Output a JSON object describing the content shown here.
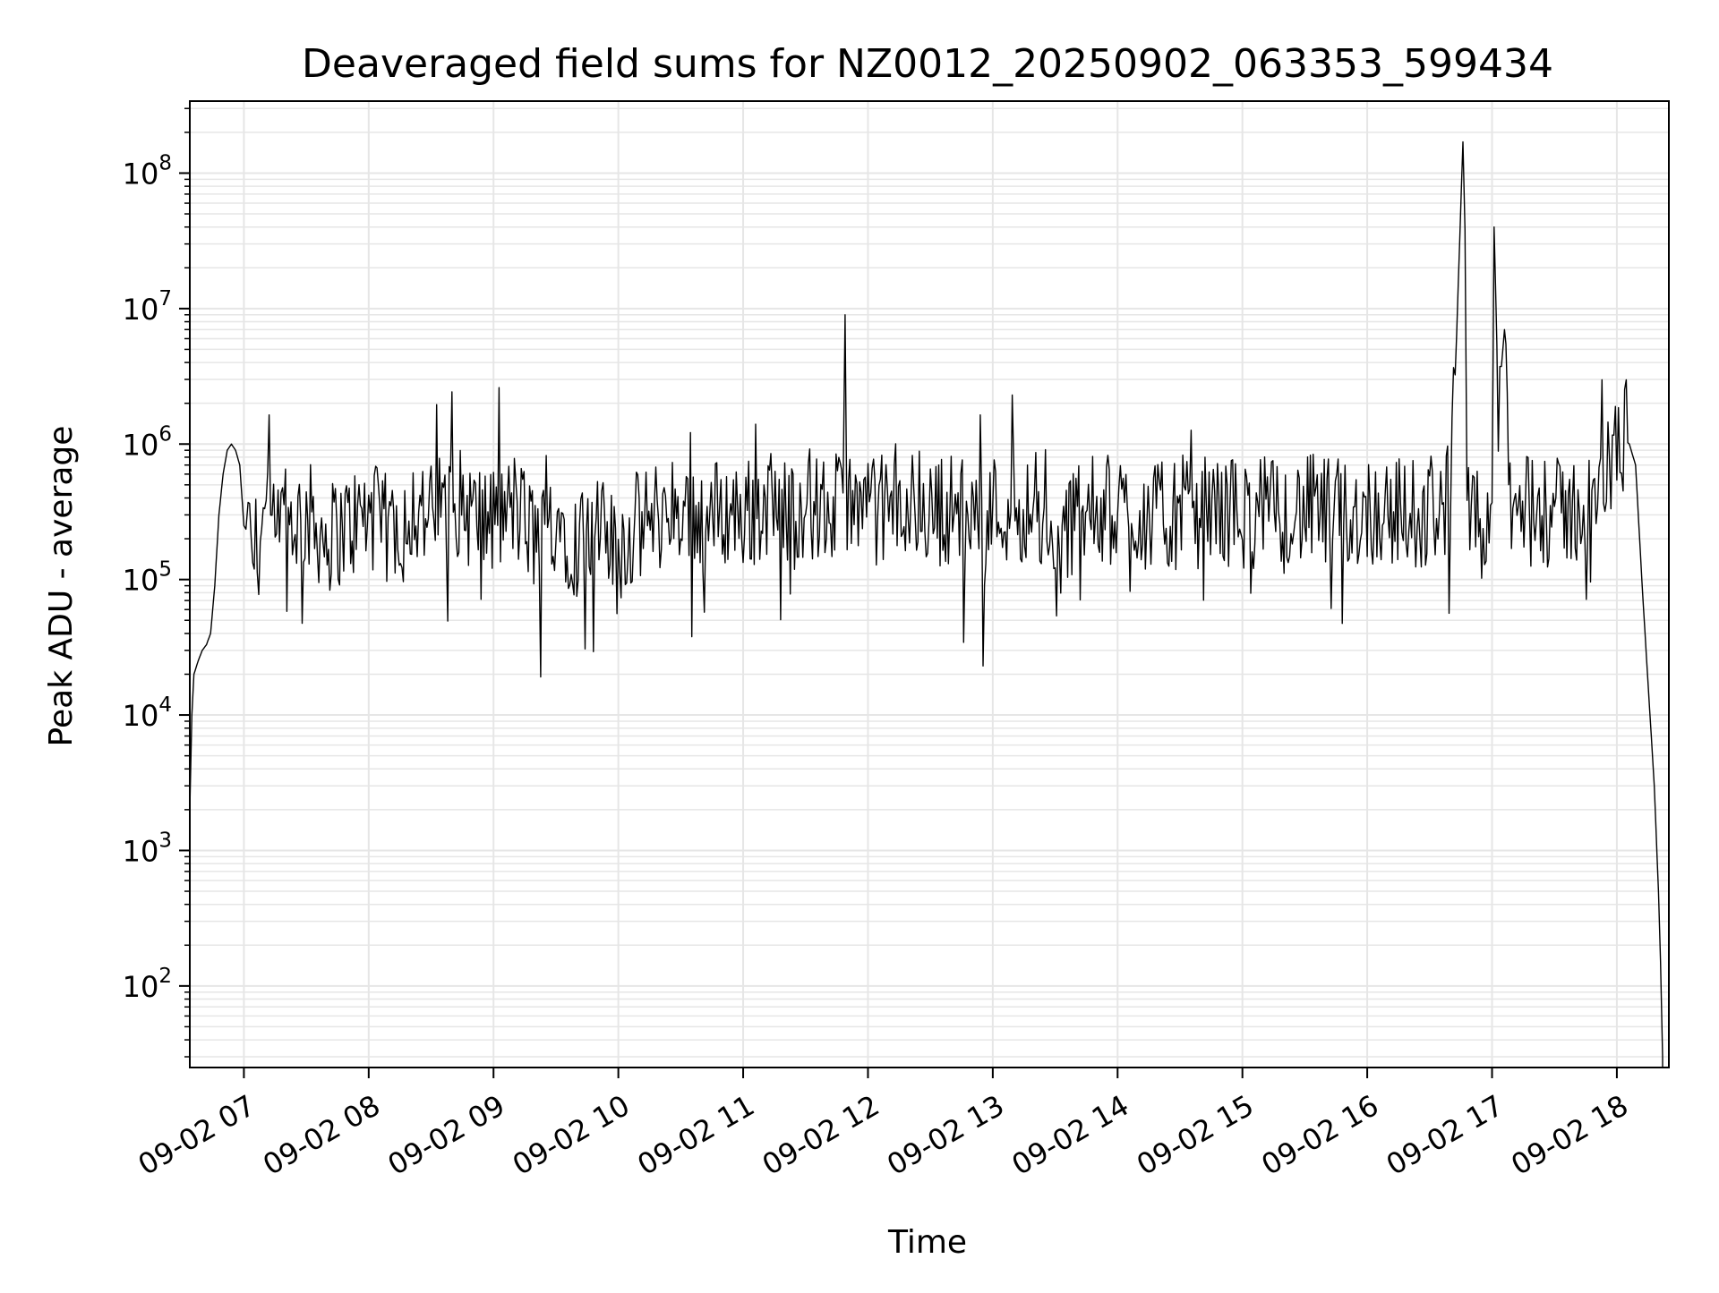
{
  "chart_data": {
    "type": "line",
    "title": "Deaveraged field sums for NZ0012_20250902_063353_599434",
    "xlabel": "Time",
    "ylabel": "Peak ADU - average",
    "yscale": "log",
    "xlim": [
      "2025-09-02 06:34",
      "2025-09-02 18:25"
    ],
    "ylim": [
      25,
      340000000
    ],
    "grid": true,
    "legend": "none",
    "x_ticks": [
      {
        "value": "2025-09-02 07:00",
        "label": "09-02 07"
      },
      {
        "value": "2025-09-02 08:00",
        "label": "09-02 08"
      },
      {
        "value": "2025-09-02 09:00",
        "label": "09-02 09"
      },
      {
        "value": "2025-09-02 10:00",
        "label": "09-02 10"
      },
      {
        "value": "2025-09-02 11:00",
        "label": "09-02 11"
      },
      {
        "value": "2025-09-02 12:00",
        "label": "09-02 12"
      },
      {
        "value": "2025-09-02 13:00",
        "label": "09-02 13"
      },
      {
        "value": "2025-09-02 14:00",
        "label": "09-02 14"
      },
      {
        "value": "2025-09-02 15:00",
        "label": "09-02 15"
      },
      {
        "value": "2025-09-02 16:00",
        "label": "09-02 16"
      },
      {
        "value": "2025-09-02 17:00",
        "label": "09-02 17"
      },
      {
        "value": "2025-09-02 18:00",
        "label": "09-02 18"
      }
    ],
    "y_ticks": [
      {
        "value": 100,
        "base": "10",
        "exp": "2"
      },
      {
        "value": 1000,
        "base": "10",
        "exp": "3"
      },
      {
        "value": 10000,
        "base": "10",
        "exp": "4"
      },
      {
        "value": 100000,
        "base": "10",
        "exp": "5"
      },
      {
        "value": 1000000,
        "base": "10",
        "exp": "6"
      },
      {
        "value": 10000000,
        "base": "10",
        "exp": "7"
      },
      {
        "value": 100000000,
        "base": "10",
        "exp": "8"
      }
    ],
    "colors": {
      "line": "#000000",
      "grid": "#e6e6e6",
      "axes": "#000000"
    },
    "series": [
      {
        "x": [
          "2025-09-02 06:34",
          "2025-09-02 06:35",
          "2025-09-02 06:36",
          "2025-09-02 06:38",
          "2025-09-02 06:40",
          "2025-09-02 06:42",
          "2025-09-02 06:44",
          "2025-09-02 06:46",
          "2025-09-02 06:48",
          "2025-09-02 06:50",
          "2025-09-02 06:52",
          "2025-09-02 06:54",
          "2025-09-02 06:56",
          "2025-09-02 06:58",
          "2025-09-02 07:00",
          "2025-09-02 07:01",
          "2025-09-02 07:02",
          "2025-09-02 07:05",
          "2025-09-02 07:10",
          "2025-09-02 07:15",
          "2025-09-02 07:20",
          "2025-09-02 07:30",
          "2025-09-02 07:40",
          "2025-09-02 07:50",
          "2025-09-02 08:00",
          "2025-09-02 08:10",
          "2025-09-02 08:20",
          "2025-09-02 08:30",
          "2025-09-02 08:40",
          "2025-09-02 08:50",
          "2025-09-02 09:00",
          "2025-09-02 09:10",
          "2025-09-02 09:20",
          "2025-09-02 09:30",
          "2025-09-02 09:40",
          "2025-09-02 09:50",
          "2025-09-02 10:00",
          "2025-09-02 10:10",
          "2025-09-02 10:20",
          "2025-09-02 10:30",
          "2025-09-02 10:40",
          "2025-09-02 10:50",
          "2025-09-02 11:00",
          "2025-09-02 11:10",
          "2025-09-02 11:20",
          "2025-09-02 11:30",
          "2025-09-02 11:40",
          "2025-09-02 11:48",
          "2025-09-02 11:49",
          "2025-09-02 11:50",
          "2025-09-02 12:00",
          "2025-09-02 12:10",
          "2025-09-02 12:20",
          "2025-09-02 12:30",
          "2025-09-02 12:40",
          "2025-09-02 12:50",
          "2025-09-02 13:00",
          "2025-09-02 13:10",
          "2025-09-02 13:20",
          "2025-09-02 13:30",
          "2025-09-02 13:40",
          "2025-09-02 13:50",
          "2025-09-02 14:00",
          "2025-09-02 14:10",
          "2025-09-02 14:20",
          "2025-09-02 14:30",
          "2025-09-02 14:40",
          "2025-09-02 14:50",
          "2025-09-02 15:00",
          "2025-09-02 15:10",
          "2025-09-02 15:20",
          "2025-09-02 15:30",
          "2025-09-02 15:40",
          "2025-09-02 15:50",
          "2025-09-02 16:00",
          "2025-09-02 16:10",
          "2025-09-02 16:20",
          "2025-09-02 16:30",
          "2025-09-02 16:40",
          "2025-09-02 16:43",
          "2025-09-02 16:46",
          "2025-09-02 16:47",
          "2025-09-02 16:48",
          "2025-09-02 16:50",
          "2025-09-02 16:55",
          "2025-09-02 17:00",
          "2025-09-02 17:01",
          "2025-09-02 17:03",
          "2025-09-02 17:06",
          "2025-09-02 17:08",
          "2025-09-02 17:10",
          "2025-09-02 17:20",
          "2025-09-02 17:30",
          "2025-09-02 17:40",
          "2025-09-02 17:50",
          "2025-09-02 17:55",
          "2025-09-02 18:00",
          "2025-09-02 18:03",
          "2025-09-02 18:06",
          "2025-09-02 18:09",
          "2025-09-02 18:12",
          "2025-09-02 18:15",
          "2025-09-02 18:18",
          "2025-09-02 18:20",
          "2025-09-02 18:21",
          "2025-09-02 18:22"
        ],
        "values": [
          2000,
          10000,
          20000,
          25000,
          30000,
          33000,
          40000,
          90000,
          300000,
          600000,
          900000,
          1000000,
          900000,
          700000,
          250000,
          400000,
          200000,
          150000,
          300000,
          180000,
          250000,
          300000,
          200000,
          250000,
          300000,
          220000,
          350000,
          280000,
          400000,
          300000,
          250000,
          350000,
          200000,
          300000,
          180000,
          220000,
          170000,
          250000,
          300000,
          350000,
          280000,
          320000,
          300000,
          350000,
          330000,
          380000,
          300000,
          350000,
          9000000,
          300000,
          330000,
          320000,
          350000,
          310000,
          340000,
          300000,
          330000,
          350000,
          320000,
          120000,
          340000,
          310000,
          330000,
          300000,
          280000,
          320000,
          310000,
          330000,
          300000,
          320000,
          290000,
          330000,
          310000,
          300000,
          320000,
          330000,
          300000,
          350000,
          400000,
          6500000,
          170000000,
          38000000,
          300000,
          250000,
          200000,
          320000,
          40000000,
          2000000,
          7000000,
          500000,
          300000,
          320000,
          300000,
          330000,
          350000,
          600000,
          900000,
          1100000,
          1000000,
          700000,
          100000,
          17000,
          3000,
          500,
          150,
          30
        ]
      }
    ]
  }
}
